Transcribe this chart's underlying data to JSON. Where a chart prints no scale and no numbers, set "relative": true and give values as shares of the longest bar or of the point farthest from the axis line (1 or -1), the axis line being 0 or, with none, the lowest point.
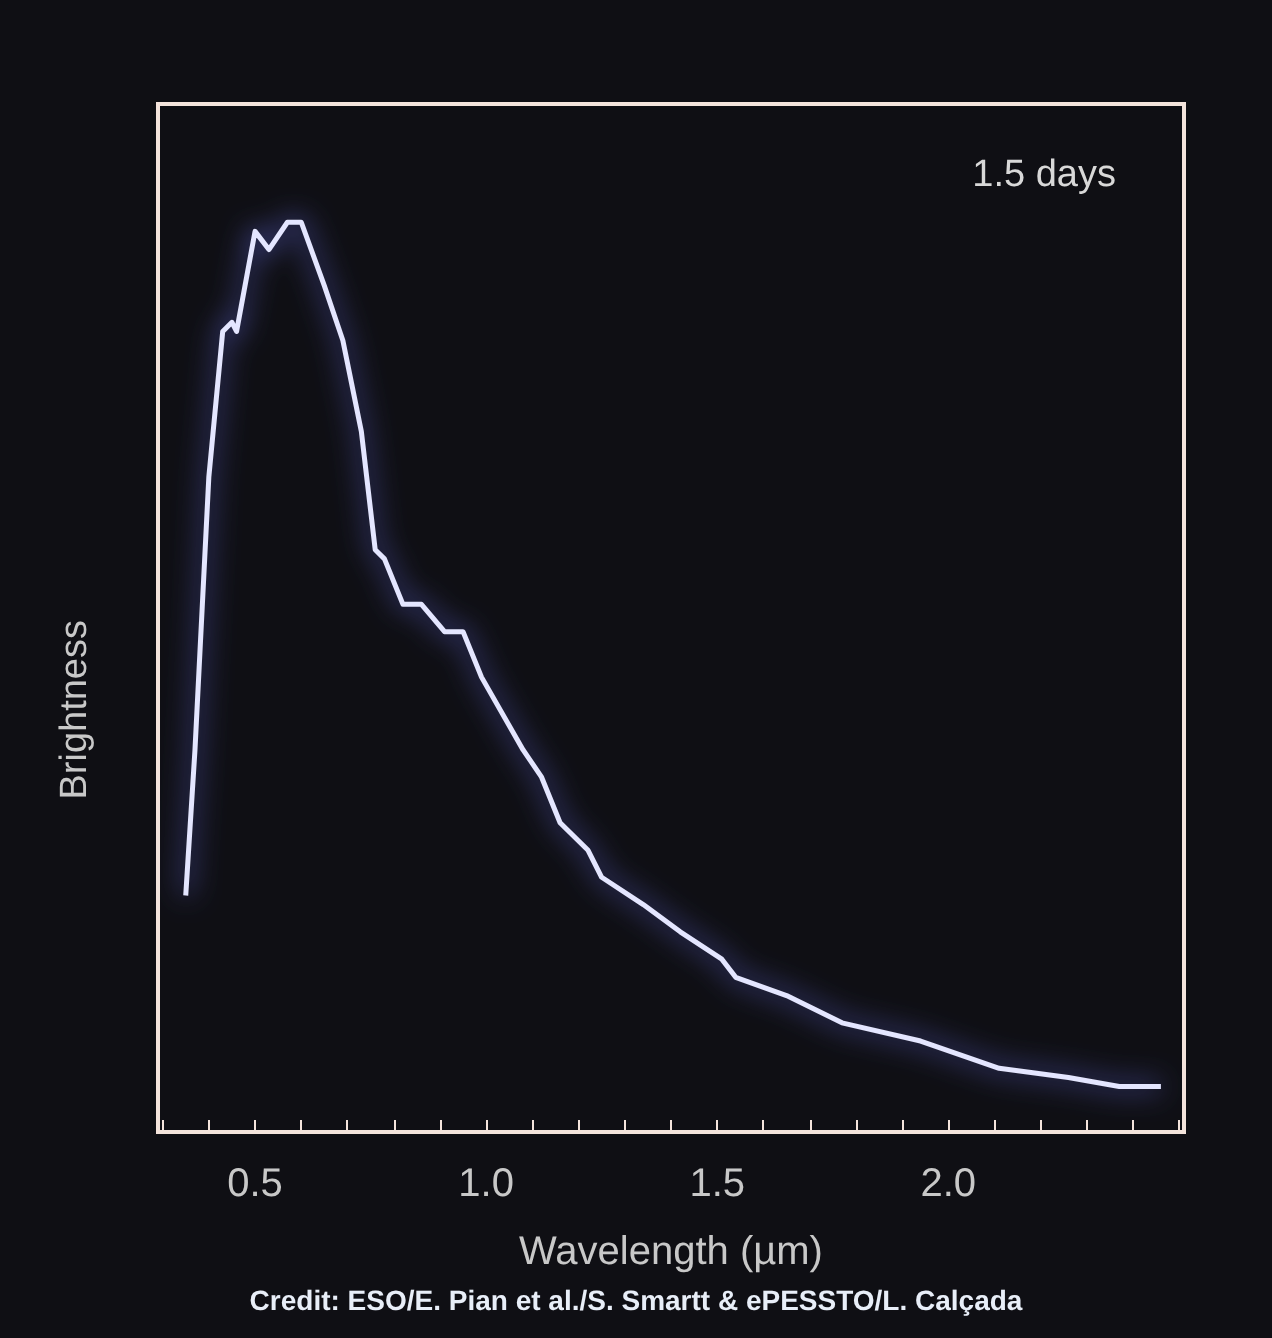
{
  "chart_data": {
    "type": "line",
    "xlabel": "Wavelength (µm)",
    "ylabel": "Brightness",
    "relative": true,
    "annotations": [
      "1.5 days",
      "Credit: ESO/E. Pian et al./S. Smartt & ePESSTO/L. Calçada"
    ],
    "xlim": [
      0.29,
      2.51
    ],
    "xticks": [
      {
        "value": 0.3,
        "label": null
      },
      {
        "value": 0.4,
        "label": null
      },
      0.5,
      {
        "value": 0.6,
        "label": null
      },
      {
        "value": 0.7,
        "label": null
      },
      {
        "value": 0.8,
        "label": null
      },
      {
        "value": 0.9,
        "label": null
      },
      {
        "value": 1,
        "label": "1.0"
      },
      {
        "value": 1.1,
        "label": null
      },
      {
        "value": 1.2,
        "label": null
      },
      {
        "value": 1.3,
        "label": null
      },
      {
        "value": 1.4,
        "label": null
      },
      1.5,
      {
        "value": 1.6,
        "label": null
      },
      {
        "value": 1.7,
        "label": null
      },
      {
        "value": 1.8,
        "label": null
      },
      {
        "value": 1.9,
        "label": null
      },
      {
        "value": 2,
        "label": "2.0"
      },
      {
        "value": 2.1,
        "label": null
      },
      {
        "value": 2.2,
        "label": null
      },
      {
        "value": 2.3,
        "label": null
      },
      {
        "value": 2.4,
        "label": null
      },
      {
        "value": 2.5,
        "label": null
      }
    ],
    "x": [
      0.35,
      0.37,
      0.4,
      0.43,
      0.45,
      0.46,
      0.5,
      0.53,
      0.57,
      0.6,
      0.65,
      0.69,
      0.73,
      0.76,
      0.78,
      0.82,
      0.86,
      0.91,
      0.95,
      0.99,
      1.08,
      1.12,
      1.16,
      1.22,
      1.25,
      1.34,
      1.42,
      1.51,
      1.54,
      1.65,
      1.77,
      1.94,
      2.11,
      2.26,
      2.37,
      2.46
    ],
    "series": [
      {
        "color": "#e4e6ff",
        "values": [
          0.26,
          0.42,
          0.72,
          0.88,
          0.89,
          0.88,
          0.99,
          0.97,
          1,
          1,
          0.93,
          0.87,
          0.77,
          0.64,
          0.63,
          0.58,
          0.58,
          0.55,
          0.55,
          0.5,
          0.42,
          0.39,
          0.34,
          0.31,
          0.28,
          0.25,
          0.22,
          0.19,
          0.17,
          0.15,
          0.12,
          0.1,
          0.07,
          0.06,
          0.05,
          0.05
        ]
      }
    ]
  }
}
